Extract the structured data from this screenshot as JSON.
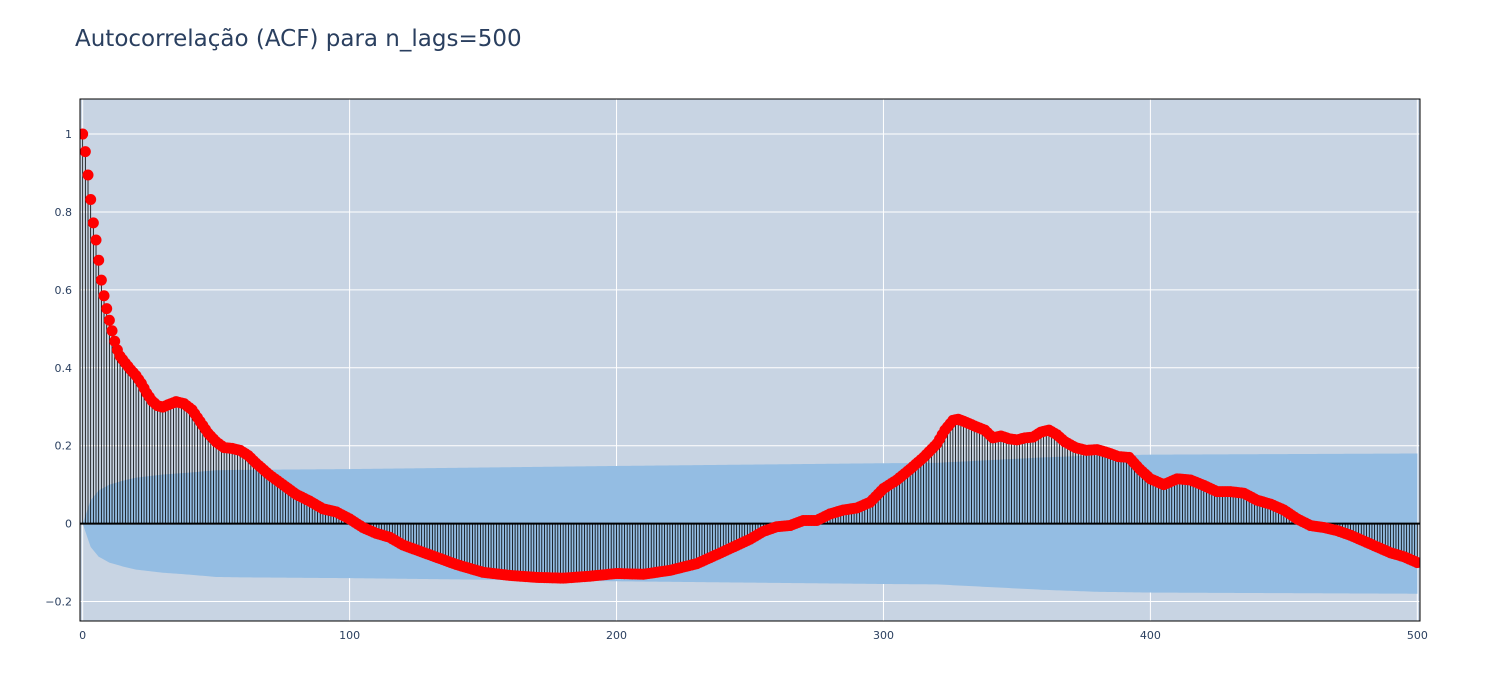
{
  "chart_data": {
    "type": "scatter",
    "title": "Autocorrelação (ACF) para n_lags=500",
    "xlabel": "",
    "ylabel": "",
    "n_lags": 500,
    "xlim": [
      -1,
      501
    ],
    "ylim": [
      -0.25,
      1.09
    ],
    "x_ticks": [
      0,
      100,
      200,
      300,
      400,
      500
    ],
    "x_tick_labels": [
      "0",
      "100",
      "200",
      "300",
      "400",
      "500"
    ],
    "y_ticks": [
      -0.2,
      0,
      0.2,
      0.4,
      0.6,
      0.8,
      1
    ],
    "y_tick_labels": [
      "−0.2",
      "0",
      "0.2",
      "0.4",
      "0.6",
      "0.8",
      "1"
    ],
    "grid": true,
    "colors": {
      "plot_background": "#c8d4e3",
      "gridline": "#ffffff",
      "stem": "#000000",
      "marker": "#ff0000",
      "confidence_band": "#94bde3",
      "zero_line": "#000000",
      "text": "#2a3f5f"
    },
    "acf_keypoints": [
      [
        0,
        1.0
      ],
      [
        1,
        0.955
      ],
      [
        2,
        0.895
      ],
      [
        3,
        0.832
      ],
      [
        4,
        0.772
      ],
      [
        5,
        0.728
      ],
      [
        6,
        0.676
      ],
      [
        7,
        0.625
      ],
      [
        8,
        0.585
      ],
      [
        9,
        0.552
      ],
      [
        10,
        0.522
      ],
      [
        11,
        0.495
      ],
      [
        12,
        0.468
      ],
      [
        13,
        0.446
      ],
      [
        14,
        0.43
      ],
      [
        16,
        0.412
      ],
      [
        18,
        0.395
      ],
      [
        20,
        0.38
      ],
      [
        22,
        0.36
      ],
      [
        24,
        0.335
      ],
      [
        26,
        0.315
      ],
      [
        28,
        0.303
      ],
      [
        30,
        0.299
      ],
      [
        32,
        0.305
      ],
      [
        35,
        0.313
      ],
      [
        38,
        0.308
      ],
      [
        41,
        0.292
      ],
      [
        44,
        0.262
      ],
      [
        47,
        0.232
      ],
      [
        50,
        0.21
      ],
      [
        53,
        0.195
      ],
      [
        56,
        0.193
      ],
      [
        59,
        0.188
      ],
      [
        62,
        0.175
      ],
      [
        65,
        0.155
      ],
      [
        70,
        0.125
      ],
      [
        75,
        0.1
      ],
      [
        80,
        0.075
      ],
      [
        85,
        0.058
      ],
      [
        90,
        0.038
      ],
      [
        95,
        0.03
      ],
      [
        100,
        0.012
      ],
      [
        105,
        -0.01
      ],
      [
        110,
        -0.025
      ],
      [
        115,
        -0.035
      ],
      [
        120,
        -0.055
      ],
      [
        130,
        -0.08
      ],
      [
        140,
        -0.105
      ],
      [
        150,
        -0.125
      ],
      [
        160,
        -0.133
      ],
      [
        170,
        -0.138
      ],
      [
        180,
        -0.14
      ],
      [
        190,
        -0.135
      ],
      [
        200,
        -0.128
      ],
      [
        210,
        -0.13
      ],
      [
        220,
        -0.12
      ],
      [
        230,
        -0.103
      ],
      [
        240,
        -0.072
      ],
      [
        250,
        -0.04
      ],
      [
        255,
        -0.02
      ],
      [
        260,
        -0.008
      ],
      [
        265,
        -0.005
      ],
      [
        270,
        0.008
      ],
      [
        275,
        0.008
      ],
      [
        280,
        0.025
      ],
      [
        285,
        0.035
      ],
      [
        290,
        0.04
      ],
      [
        295,
        0.055
      ],
      [
        300,
        0.09
      ],
      [
        305,
        0.112
      ],
      [
        310,
        0.14
      ],
      [
        315,
        0.17
      ],
      [
        320,
        0.205
      ],
      [
        323,
        0.24
      ],
      [
        326,
        0.265
      ],
      [
        328,
        0.268
      ],
      [
        331,
        0.26
      ],
      [
        335,
        0.248
      ],
      [
        338,
        0.24
      ],
      [
        341,
        0.22
      ],
      [
        344,
        0.225
      ],
      [
        347,
        0.218
      ],
      [
        350,
        0.215
      ],
      [
        353,
        0.22
      ],
      [
        356,
        0.222
      ],
      [
        359,
        0.235
      ],
      [
        362,
        0.24
      ],
      [
        365,
        0.228
      ],
      [
        368,
        0.21
      ],
      [
        372,
        0.195
      ],
      [
        376,
        0.188
      ],
      [
        380,
        0.19
      ],
      [
        384,
        0.182
      ],
      [
        388,
        0.172
      ],
      [
        392,
        0.17
      ],
      [
        396,
        0.14
      ],
      [
        400,
        0.115
      ],
      [
        405,
        0.1
      ],
      [
        410,
        0.115
      ],
      [
        415,
        0.112
      ],
      [
        420,
        0.098
      ],
      [
        425,
        0.082
      ],
      [
        430,
        0.082
      ],
      [
        435,
        0.078
      ],
      [
        440,
        0.06
      ],
      [
        445,
        0.05
      ],
      [
        450,
        0.035
      ],
      [
        455,
        0.012
      ],
      [
        460,
        -0.005
      ],
      [
        465,
        -0.01
      ],
      [
        470,
        -0.018
      ],
      [
        475,
        -0.03
      ],
      [
        480,
        -0.045
      ],
      [
        485,
        -0.06
      ],
      [
        490,
        -0.075
      ],
      [
        495,
        -0.085
      ],
      [
        500,
        -0.1
      ]
    ],
    "confidence_upper_keypoints": [
      [
        0,
        0.0
      ],
      [
        1,
        0.02
      ],
      [
        3,
        0.06
      ],
      [
        6,
        0.085
      ],
      [
        10,
        0.1
      ],
      [
        15,
        0.11
      ],
      [
        20,
        0.118
      ],
      [
        30,
        0.126
      ],
      [
        40,
        0.131
      ],
      [
        50,
        0.137
      ],
      [
        60,
        0.138
      ],
      [
        100,
        0.14
      ],
      [
        200,
        0.148
      ],
      [
        300,
        0.155
      ],
      [
        320,
        0.156
      ],
      [
        340,
        0.163
      ],
      [
        360,
        0.17
      ],
      [
        380,
        0.175
      ],
      [
        400,
        0.177
      ],
      [
        500,
        0.18
      ]
    ]
  }
}
